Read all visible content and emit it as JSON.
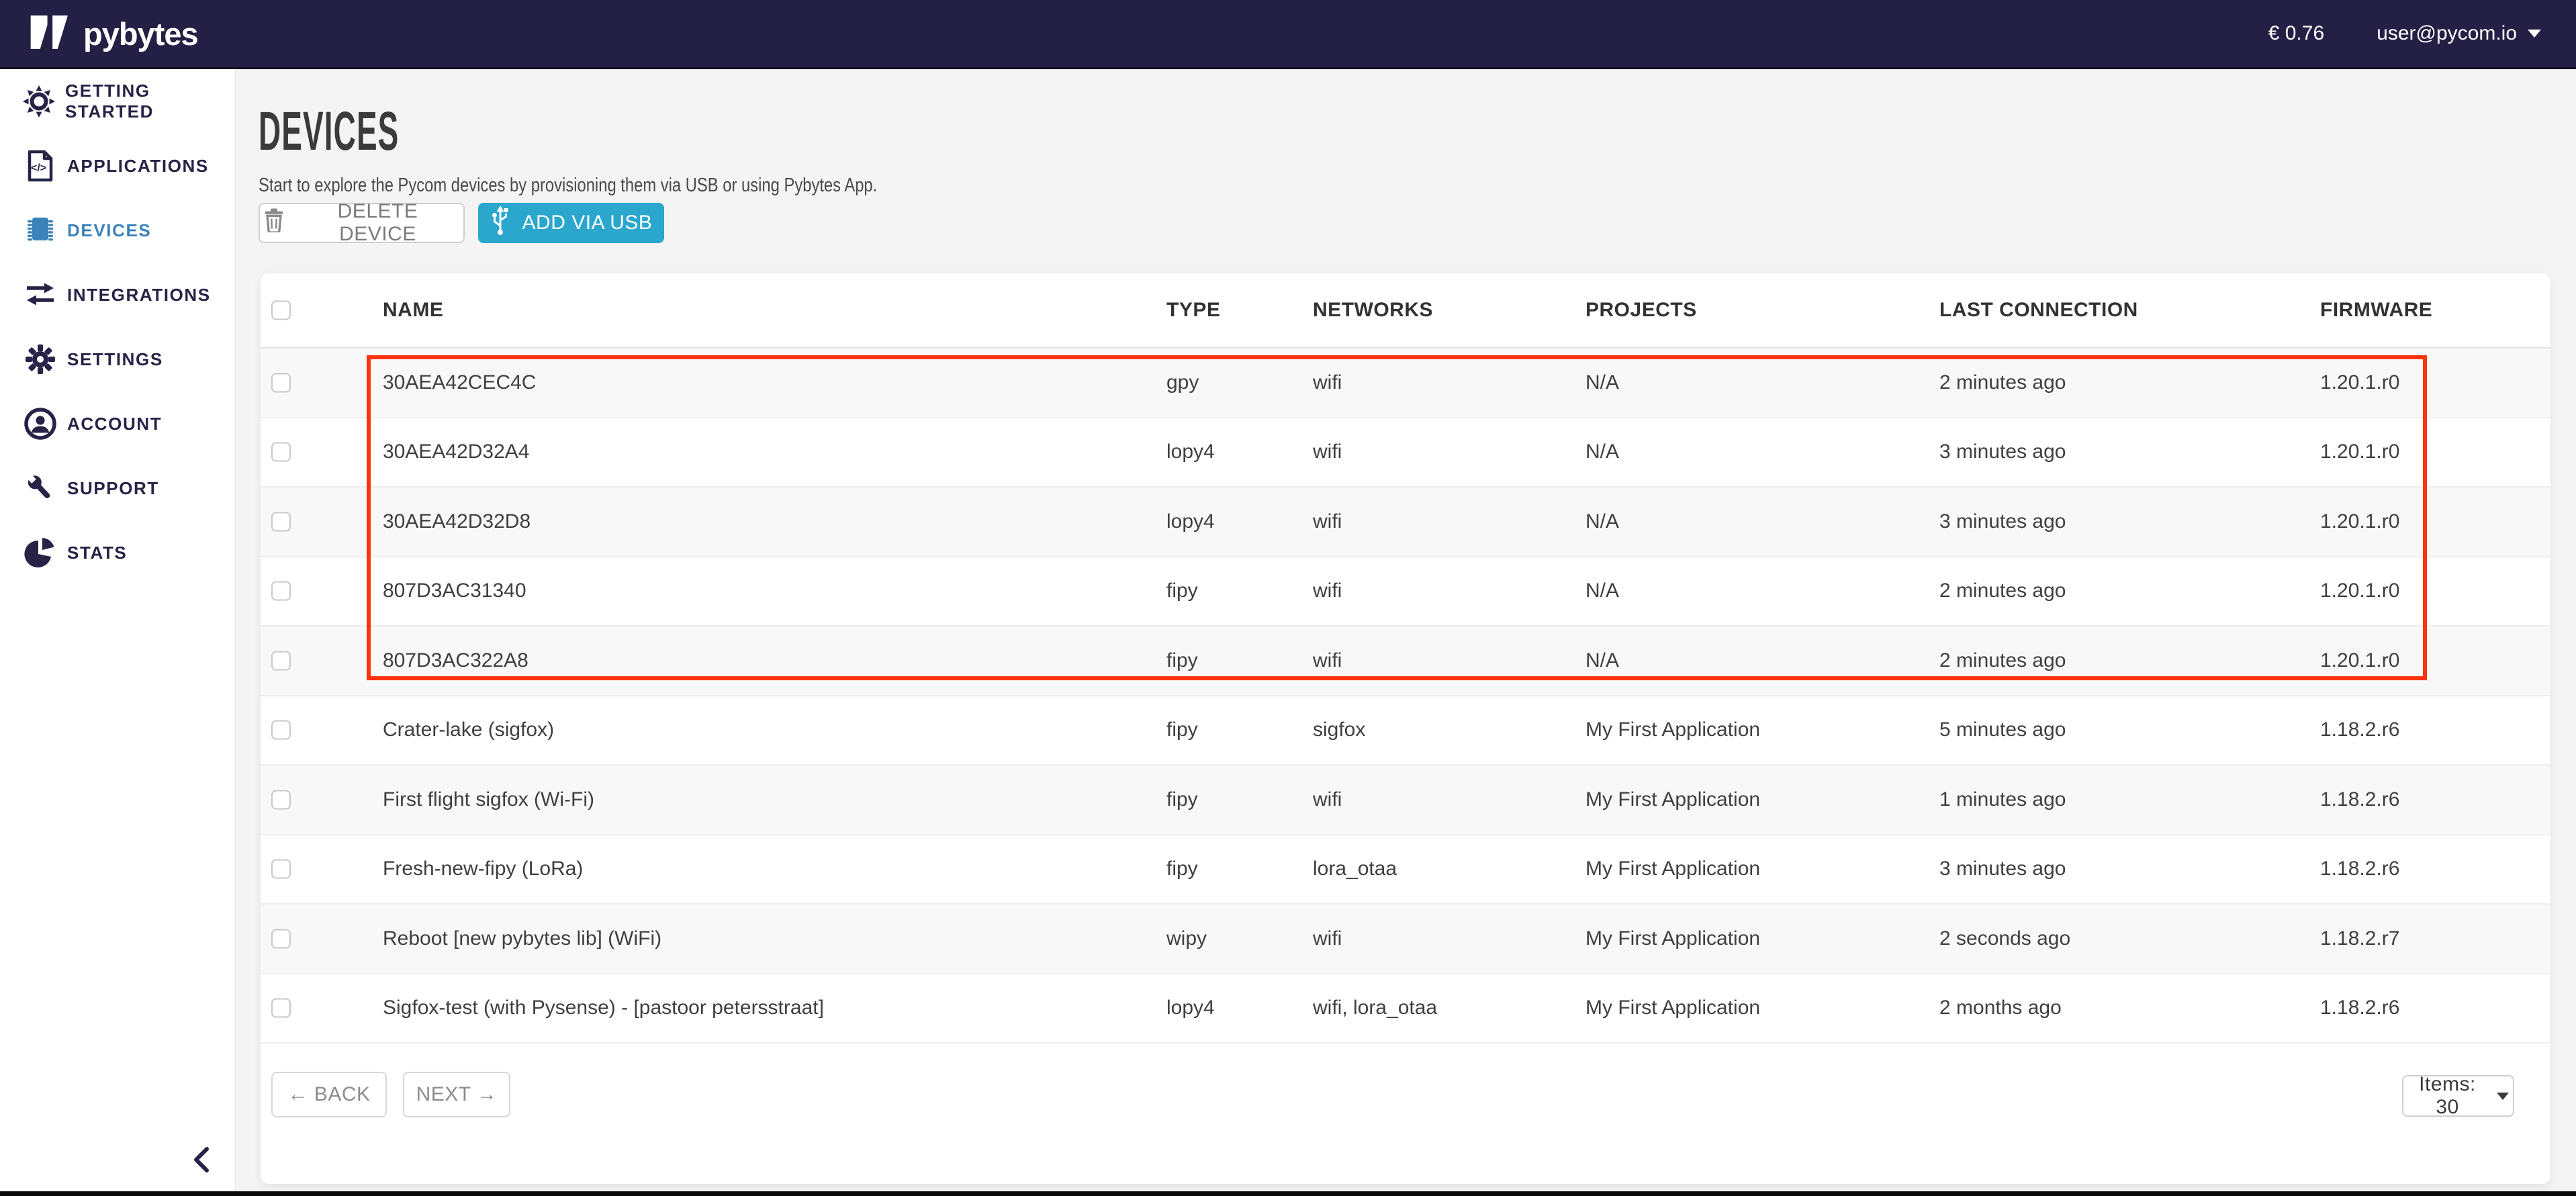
{
  "topbar": {
    "logo_text": "pybytes",
    "balance": "€ 0.76",
    "user_email": "user@pycom.io"
  },
  "sidebar": {
    "items": [
      {
        "label": "GETTING STARTED",
        "icon": "sun-icon",
        "active": false
      },
      {
        "label": "APPLICATIONS",
        "icon": "code-file-icon",
        "active": false
      },
      {
        "label": "DEVICES",
        "icon": "chip-icon",
        "active": true
      },
      {
        "label": "INTEGRATIONS",
        "icon": "arrows-exchange-icon",
        "active": false
      },
      {
        "label": "SETTINGS",
        "icon": "gear-icon",
        "active": false
      },
      {
        "label": "ACCOUNT",
        "icon": "user-icon",
        "active": false
      },
      {
        "label": "SUPPORT",
        "icon": "wrench-icon",
        "active": false
      },
      {
        "label": "STATS",
        "icon": "pie-chart-icon",
        "active": false
      }
    ]
  },
  "page": {
    "title": "DEVICES",
    "subtitle": "Start to explore the Pycom devices by provisioning them via USB or using Pybytes App."
  },
  "toolbar": {
    "delete_label": "DELETE DEVICE",
    "add_label": "ADD VIA USB"
  },
  "table": {
    "columns": [
      "NAME",
      "TYPE",
      "NETWORKS",
      "PROJECTS",
      "LAST CONNECTION",
      "FIRMWARE"
    ],
    "rows": [
      {
        "name": "30AEA42CEC4C",
        "type": "gpy",
        "networks": "wifi",
        "projects": "N/A",
        "last_connection": "2 minutes ago",
        "firmware": "1.20.1.r0"
      },
      {
        "name": "30AEA42D32A4",
        "type": "lopy4",
        "networks": "wifi",
        "projects": "N/A",
        "last_connection": "3 minutes ago",
        "firmware": "1.20.1.r0"
      },
      {
        "name": "30AEA42D32D8",
        "type": "lopy4",
        "networks": "wifi",
        "projects": "N/A",
        "last_connection": "3 minutes ago",
        "firmware": "1.20.1.r0"
      },
      {
        "name": "807D3AC31340",
        "type": "fipy",
        "networks": "wifi",
        "projects": "N/A",
        "last_connection": "2 minutes ago",
        "firmware": "1.20.1.r0"
      },
      {
        "name": "807D3AC322A8",
        "type": "fipy",
        "networks": "wifi",
        "projects": "N/A",
        "last_connection": "2 minutes ago",
        "firmware": "1.20.1.r0"
      },
      {
        "name": "Crater-lake (sigfox)",
        "type": "fipy",
        "networks": "sigfox",
        "projects": "My First Application",
        "last_connection": "5 minutes ago",
        "firmware": "1.18.2.r6"
      },
      {
        "name": "First flight sigfox (Wi-Fi)",
        "type": "fipy",
        "networks": "wifi",
        "projects": "My First Application",
        "last_connection": "1 minutes ago",
        "firmware": "1.18.2.r6"
      },
      {
        "name": "Fresh-new-fipy (LoRa)",
        "type": "fipy",
        "networks": "lora_otaa",
        "projects": "My First Application",
        "last_connection": "3 minutes ago",
        "firmware": "1.18.2.r6"
      },
      {
        "name": "Reboot [new pybytes lib] (WiFi)",
        "type": "wipy",
        "networks": "wifi",
        "projects": "My First Application",
        "last_connection": "2 seconds ago",
        "firmware": "1.18.2.r7"
      },
      {
        "name": "Sigfox-test (with Pysense) - [pastoor petersstraat]",
        "type": "lopy4",
        "networks": "wifi, lora_otaa",
        "projects": "My First Application",
        "last_connection": "2 months ago",
        "firmware": "1.18.2.r6"
      }
    ],
    "highlight": {
      "first_row": 1,
      "last_row": 5,
      "color": "#fe330d"
    }
  },
  "pagination": {
    "back_label": "← BACK",
    "next_label": "NEXT →",
    "items_label": "Items: 30"
  },
  "colors": {
    "topbar_bg": "#241f44",
    "accent_blue": "#3b82ba",
    "button_teal": "#2ba7cd",
    "highlight_red": "#fe330d",
    "page_bg": "#f4f4f5"
  }
}
